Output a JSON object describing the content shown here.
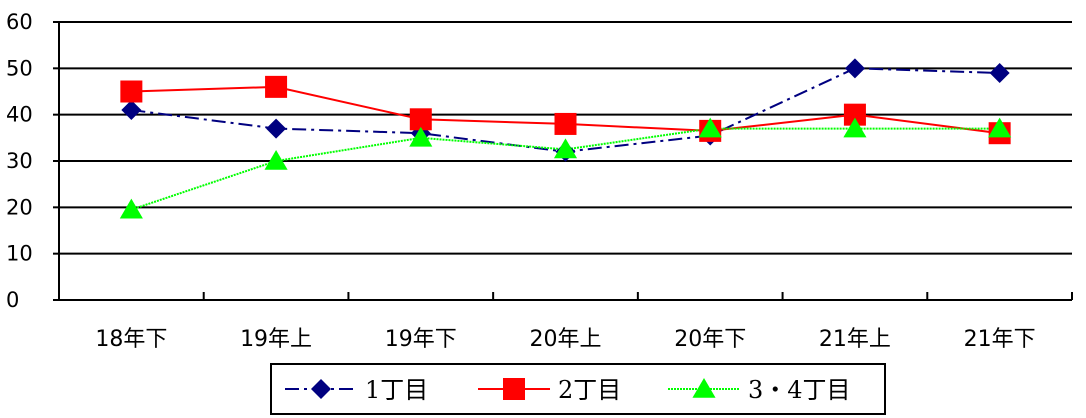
{
  "chart_data": {
    "type": "line",
    "categories": [
      "18年下",
      "19年上",
      "19年下",
      "20年上",
      "20年下",
      "21年上",
      "21年下"
    ],
    "ylim": [
      0,
      60
    ],
    "yticks": [
      0,
      10,
      20,
      30,
      40,
      50,
      60
    ],
    "grid": true,
    "legend_position": "bottom",
    "series": [
      {
        "name": "1丁目",
        "values": [
          41,
          37,
          36,
          32,
          35.5,
          50,
          49
        ],
        "color": "#000080",
        "line_style": "dash-dot",
        "marker": "diamond"
      },
      {
        "name": "2丁目",
        "values": [
          45,
          46,
          39,
          38,
          36.5,
          40,
          36
        ],
        "color": "#ff0000",
        "line_style": "solid",
        "marker": "square"
      },
      {
        "name": "3・4丁目",
        "values": [
          19.5,
          30,
          35,
          32.5,
          37,
          37,
          37
        ],
        "color": "#00ff00",
        "line_style": "dotted",
        "marker": "triangle"
      }
    ]
  }
}
